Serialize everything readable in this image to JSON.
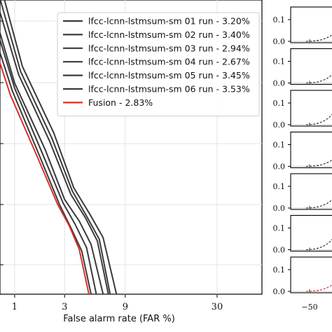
{
  "chart_data": [
    {
      "type": "line",
      "title": "",
      "xlabel": "False alarm rate (FAR %)",
      "ylabel": "",
      "x_scale": "probit",
      "x_ticks": [
        1,
        3,
        9,
        30
      ],
      "grid": true,
      "legend_placement": "top-right",
      "series": [
        {
          "name": "lfcc-lcnn-lstmsum-sm 01 run - 3.20%",
          "color": "#3a3a3a",
          "x": [
            0.55,
            1.0,
            2.0,
            3.0,
            4.0,
            5.0,
            6.2
          ],
          "y": [
            1.35,
            0.85,
            0.45,
            0.15,
            0.02,
            -0.12,
            -0.42
          ]
        },
        {
          "name": "lfcc-lcnn-lstmsum-sm 02 run - 3.40%",
          "color": "#3a3a3a",
          "x": [
            0.6,
            1.1,
            2.2,
            3.4,
            4.5,
            5.6,
            6.8
          ],
          "y": [
            1.4,
            0.9,
            0.5,
            0.18,
            0.04,
            -0.1,
            -0.42
          ]
        },
        {
          "name": "lfcc-lcnn-lstmsum-sm 03 run - 2.94%",
          "color": "#3a3a3a",
          "x": [
            0.55,
            1.0,
            1.9,
            2.9,
            3.7,
            4.6,
            5.5
          ],
          "y": [
            1.3,
            0.82,
            0.42,
            0.13,
            0.0,
            -0.14,
            -0.42
          ]
        },
        {
          "name": "lfcc-lcnn-lstmsum-sm 04 run - 2.67%",
          "color": "#3a3a3a",
          "x": [
            0.5,
            0.95,
            1.8,
            2.7,
            3.4,
            4.2,
            5.0
          ],
          "y": [
            1.28,
            0.8,
            0.4,
            0.12,
            -0.02,
            -0.16,
            -0.42
          ]
        },
        {
          "name": "lfcc-lcnn-lstmsum-sm 05 run - 3.45%",
          "color": "#3a3a3a",
          "x": [
            0.65,
            1.15,
            2.3,
            3.5,
            4.6,
            5.8,
            7.0
          ],
          "y": [
            1.42,
            0.92,
            0.52,
            0.2,
            0.05,
            -0.09,
            -0.42
          ]
        },
        {
          "name": "lfcc-lcnn-lstmsum-sm 06 run - 3.53%",
          "color": "#3a3a3a",
          "x": [
            0.7,
            1.2,
            2.4,
            3.6,
            4.9,
            6.2,
            7.8
          ],
          "y": [
            1.45,
            0.95,
            0.55,
            0.22,
            0.06,
            -0.08,
            -0.42
          ]
        },
        {
          "name": "Fusion - 2.83%",
          "color": "#d9302e",
          "x": [
            0.55,
            0.9,
            1.7,
            2.6,
            3.3,
            4.0,
            4.8
          ],
          "y": [
            1.15,
            0.78,
            0.4,
            0.12,
            -0.01,
            -0.15,
            -0.42
          ]
        }
      ]
    },
    {
      "type": "line",
      "title": "",
      "xlabel": "",
      "ylabel": "",
      "panels": 7,
      "y_ticks": [
        "0.1",
        "0.0"
      ],
      "x_ticks": [
        "−50"
      ],
      "xlim": [
        -70,
        20
      ],
      "ylim": [
        0,
        0.15
      ]
    }
  ]
}
